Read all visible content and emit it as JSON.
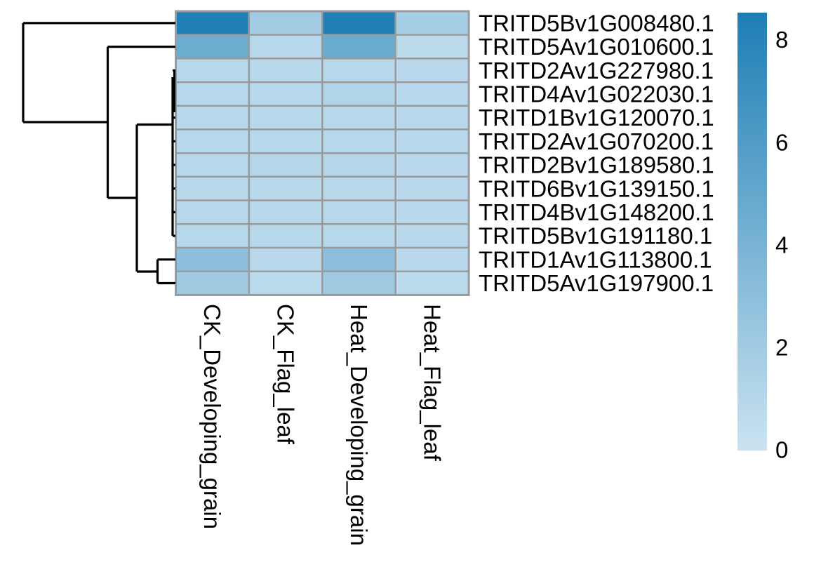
{
  "chart_data": {
    "type": "heatmap",
    "rows": [
      "TRITD5Bv1G008480.1",
      "TRITD5Av1G010600.1",
      "TRITD2Av1G227980.1",
      "TRITD4Av1G022030.1",
      "TRITD1Bv1G120070.1",
      "TRITD2Av1G070200.1",
      "TRITD2Bv1G189580.1",
      "TRITD6Bv1G139150.1",
      "TRITD4Bv1G148200.1",
      "TRITD5Bv1G191180.1",
      "TRITD1Av1G113800.1",
      "TRITD5Av1G197900.1"
    ],
    "columns": [
      "CK_Developing_grain",
      "CK_Flag_leaf",
      "Heat_Developing_grain",
      "Heat_Flag_leaf"
    ],
    "values": [
      [
        8.4,
        2.0,
        8.4,
        1.8
      ],
      [
        4.6,
        1.0,
        4.8,
        0.8
      ],
      [
        1.0,
        1.0,
        1.0,
        0.9
      ],
      [
        1.0,
        1.0,
        1.3,
        0.9
      ],
      [
        1.0,
        1.0,
        1.0,
        0.9
      ],
      [
        1.0,
        1.0,
        1.0,
        0.9
      ],
      [
        1.0,
        1.1,
        1.1,
        0.9
      ],
      [
        1.0,
        1.0,
        1.0,
        0.9
      ],
      [
        1.0,
        1.0,
        1.0,
        0.9
      ],
      [
        1.0,
        1.0,
        1.0,
        0.9
      ],
      [
        3.0,
        0.9,
        3.1,
        0.9
      ],
      [
        2.1,
        0.8,
        2.2,
        0.8
      ]
    ],
    "colormap": {
      "low": "#cbe3f1",
      "high": "#1d7eb4",
      "vmin": 0,
      "vmax": 8.53
    },
    "colorbar_ticks": [
      0,
      2,
      4,
      6,
      8
    ],
    "grid_color": "#9a9a9a",
    "dendrogram": {
      "color": "#000000",
      "line_width": 3.2,
      "segments": [
        [
          33,
          32.9,
          250,
          32.9
        ],
        [
          33,
          32.9,
          33,
          174
        ],
        [
          33,
          174,
          153.5,
          174
        ],
        [
          153.5,
          66.6,
          153.5,
          282
        ],
        [
          153.5,
          66.6,
          250,
          66.6
        ],
        [
          153.5,
          282,
          195,
          282
        ],
        [
          195,
          177.5,
          195,
          387
        ],
        [
          195,
          177.5,
          246,
          177.5
        ],
        [
          195,
          387,
          224.5,
          387
        ],
        [
          224.5,
          369.8,
          224.5,
          403.5
        ],
        [
          224.5,
          369.8,
          250,
          369.8
        ],
        [
          224.5,
          403.5,
          250,
          403.5
        ],
        [
          246,
          110,
          246,
          336.1
        ],
        [
          248.5,
          100.3,
          248.5,
          160
        ],
        [
          246,
          100.3,
          250,
          100.3
        ],
        [
          246,
          134.0,
          250,
          134.0
        ],
        [
          246,
          167.6,
          250,
          167.6
        ],
        [
          246,
          201.3,
          250,
          201.3
        ],
        [
          246,
          235.0,
          250,
          235.0
        ],
        [
          246,
          268.7,
          250,
          268.7
        ],
        [
          246,
          302.4,
          250,
          302.4
        ],
        [
          246,
          336.1,
          250,
          336.1
        ]
      ]
    }
  }
}
